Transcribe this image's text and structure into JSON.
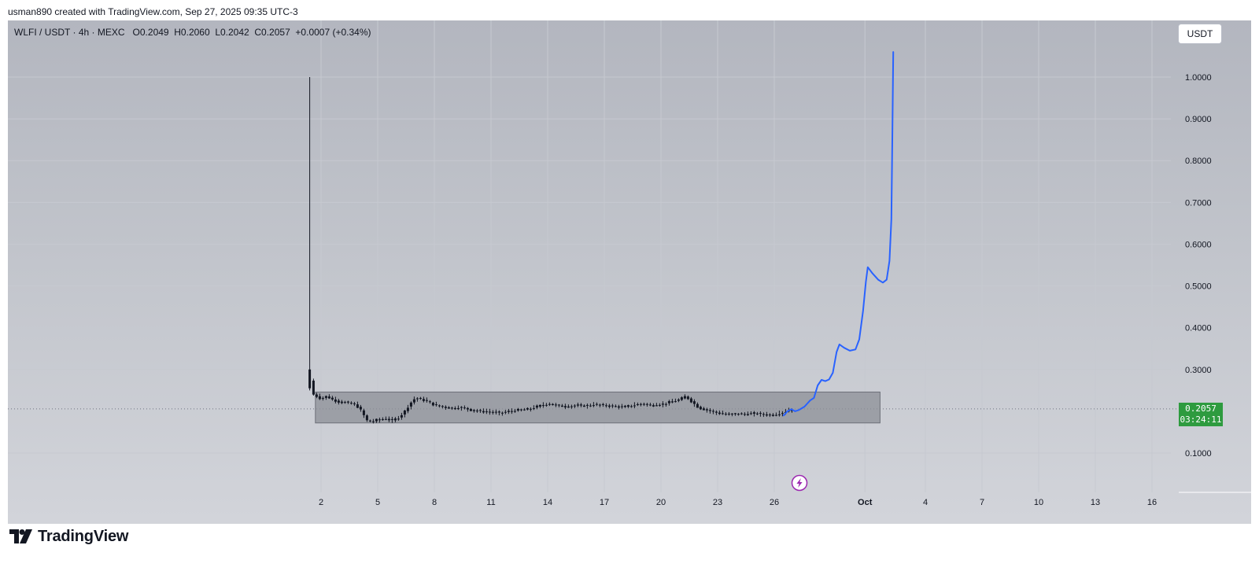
{
  "attribution": "usman890 created with TradingView.com, Sep 27, 2025 09:35 UTC-3",
  "symbol": {
    "pair": "WLFI / USDT",
    "interval": "4h",
    "exchange": "MEXC",
    "open": "O0.2049",
    "high": "H0.2060",
    "low": "L0.2042",
    "close": "C0.2057",
    "change": "+0.0007 (+0.34%)"
  },
  "currency_button": "USDT",
  "last_price": {
    "value": "0.2057",
    "countdown": "03:24:11"
  },
  "footer": {
    "brand": "TradingView"
  },
  "colors": {
    "candle": "#131722",
    "projection": "#2962ff",
    "range_box": "#8c8f97",
    "last_price": "#2e9b3f",
    "alert_icon": "#9c27b0"
  },
  "icons": {
    "alert": "lightning-icon",
    "logo": "tradingview-logo-icon"
  },
  "chart_data": {
    "type": "candlestick",
    "ylim": [
      0,
      1.08
    ],
    "y_ticks": [
      "1.0000",
      "0.9000",
      "0.8000",
      "0.7000",
      "0.6000",
      "0.5000",
      "0.4000",
      "0.3000",
      "0.1000"
    ],
    "x_ticks": [
      {
        "label": "2",
        "day": 2
      },
      {
        "label": "5",
        "day": 5
      },
      {
        "label": "8",
        "day": 8
      },
      {
        "label": "11",
        "day": 11
      },
      {
        "label": "14",
        "day": 14
      },
      {
        "label": "17",
        "day": 17
      },
      {
        "label": "20",
        "day": 20
      },
      {
        "label": "23",
        "day": 23
      },
      {
        "label": "26",
        "day": 26
      },
      {
        "label": "Oct",
        "day": 30.8
      },
      {
        "label": "4",
        "day": 34
      },
      {
        "label": "7",
        "day": 37
      },
      {
        "label": "10",
        "day": 40
      },
      {
        "label": "13",
        "day": 43
      },
      {
        "label": "16",
        "day": 46
      }
    ],
    "last_price": 0.2057,
    "range_box": {
      "day_start": 1.7,
      "day_end": 31.6,
      "price_low": 0.172,
      "price_high": 0.246
    },
    "price_path": [
      [
        1.4,
        0.28
      ],
      [
        1.6,
        0.24
      ],
      [
        1.8,
        0.235
      ],
      [
        2.0,
        0.23
      ],
      [
        2.3,
        0.236
      ],
      [
        2.6,
        0.228
      ],
      [
        3.0,
        0.222
      ],
      [
        3.5,
        0.22
      ],
      [
        3.8,
        0.216
      ],
      [
        4.0,
        0.208
      ],
      [
        4.2,
        0.196
      ],
      [
        4.4,
        0.178
      ],
      [
        4.7,
        0.175
      ],
      [
        5.0,
        0.18
      ],
      [
        5.4,
        0.182
      ],
      [
        5.8,
        0.178
      ],
      [
        6.1,
        0.185
      ],
      [
        6.4,
        0.198
      ],
      [
        6.7,
        0.218
      ],
      [
        7.0,
        0.232
      ],
      [
        7.3,
        0.229
      ],
      [
        7.7,
        0.222
      ],
      [
        8.0,
        0.215
      ],
      [
        8.5,
        0.21
      ],
      [
        9.0,
        0.207
      ],
      [
        9.5,
        0.209
      ],
      [
        10.0,
        0.202
      ],
      [
        10.5,
        0.2
      ],
      [
        11.0,
        0.198
      ],
      [
        11.5,
        0.196
      ],
      [
        12.0,
        0.2
      ],
      [
        12.5,
        0.203
      ],
      [
        13.0,
        0.205
      ],
      [
        13.5,
        0.212
      ],
      [
        14.0,
        0.218
      ],
      [
        14.5,
        0.214
      ],
      [
        15.0,
        0.211
      ],
      [
        15.5,
        0.214
      ],
      [
        16.0,
        0.213
      ],
      [
        16.5,
        0.216
      ],
      [
        17.0,
        0.214
      ],
      [
        17.5,
        0.212
      ],
      [
        18.0,
        0.21
      ],
      [
        18.5,
        0.214
      ],
      [
        19.0,
        0.218
      ],
      [
        19.5,
        0.214
      ],
      [
        20.0,
        0.216
      ],
      [
        20.5,
        0.222
      ],
      [
        21.0,
        0.228
      ],
      [
        21.3,
        0.236
      ],
      [
        21.6,
        0.224
      ],
      [
        22.0,
        0.208
      ],
      [
        22.5,
        0.202
      ],
      [
        23.0,
        0.196
      ],
      [
        23.5,
        0.192
      ],
      [
        24.0,
        0.194
      ],
      [
        24.5,
        0.193
      ],
      [
        25.0,
        0.195
      ],
      [
        25.5,
        0.192
      ],
      [
        26.0,
        0.191
      ],
      [
        26.5,
        0.198
      ],
      [
        27.0,
        0.2057
      ]
    ],
    "projection": [
      [
        26.5,
        0.19
      ],
      [
        26.7,
        0.2
      ],
      [
        26.9,
        0.205
      ],
      [
        27.1,
        0.2
      ],
      [
        27.3,
        0.203
      ],
      [
        27.6,
        0.211
      ],
      [
        27.9,
        0.226
      ],
      [
        28.1,
        0.232
      ],
      [
        28.3,
        0.262
      ],
      [
        28.5,
        0.275
      ],
      [
        28.7,
        0.272
      ],
      [
        28.9,
        0.276
      ],
      [
        29.1,
        0.292
      ],
      [
        29.3,
        0.342
      ],
      [
        29.45,
        0.36
      ],
      [
        29.7,
        0.352
      ],
      [
        30.0,
        0.345
      ],
      [
        30.3,
        0.348
      ],
      [
        30.5,
        0.372
      ],
      [
        30.7,
        0.44
      ],
      [
        30.85,
        0.51
      ],
      [
        30.95,
        0.545
      ],
      [
        31.2,
        0.53
      ],
      [
        31.5,
        0.515
      ],
      [
        31.75,
        0.508
      ],
      [
        31.95,
        0.515
      ],
      [
        32.1,
        0.56
      ],
      [
        32.2,
        0.66
      ],
      [
        32.25,
        0.85
      ],
      [
        32.3,
        1.06
      ]
    ]
  }
}
